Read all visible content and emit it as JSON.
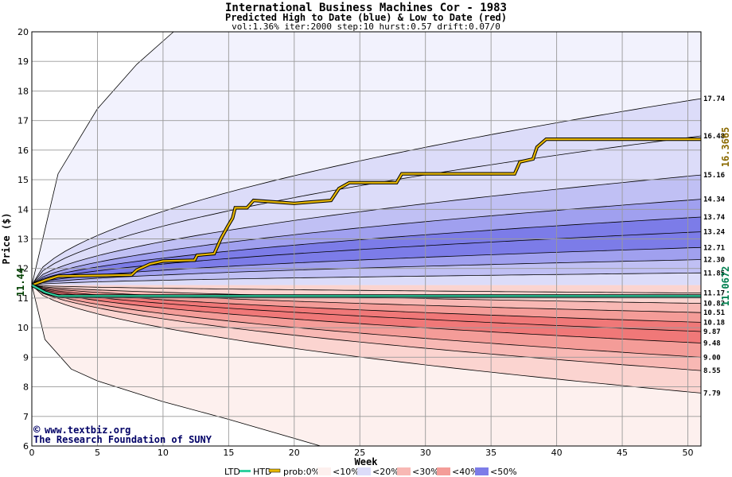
{
  "header": {
    "title": "International Business Machines Cor - 1983",
    "subtitle": "Predicted High to Date (blue) &  Low to Date (red)",
    "params": "vol:1.36% iter:2000 step:10 hurst:0.57 drift:0.07/0"
  },
  "watermark": {
    "line1": "www.textbiz.org",
    "copyright_symbol": "©",
    "line2": "The Research Foundation of SUNY"
  },
  "legend": {
    "ltd": "LTD",
    "htd": "HTD",
    "prob": "prob:0%",
    "items": [
      "<10%",
      "<20%",
      "<30%",
      "<40%",
      "<50%"
    ]
  },
  "colors": {
    "ltd": "#30d0a0",
    "htd": "#e8b800",
    "blue_bands": [
      "#f2f2fd",
      "#dcdcf9",
      "#c0c0f4",
      "#a0a0ef",
      "#7c7ce8"
    ],
    "red_bands": [
      "#fdf0ee",
      "#fbd4d0",
      "#f8b8b4",
      "#f49c98",
      "#f07878"
    ],
    "left_marker": "#004000",
    "right_high_marker": "#8b6a00",
    "right_low_marker": "#008050"
  },
  "chart_data": {
    "type": "area",
    "xlabel": "Week",
    "ylabel": "Price ($)",
    "xlim": [
      0,
      51
    ],
    "ylim": [
      6,
      20
    ],
    "x_ticks": [
      0,
      5,
      10,
      15,
      20,
      25,
      30,
      35,
      40,
      45,
      50
    ],
    "y_ticks": [
      6,
      7,
      8,
      9,
      10,
      11,
      12,
      13,
      14,
      15,
      16,
      17,
      18,
      19,
      20
    ],
    "start_price": 11.44,
    "start_price_label": "11.44",
    "high_end_label": "16.3665",
    "low_end_label": "11.0672",
    "high_quantile_levels_at_week_51": [
      17.74,
      16.48,
      15.16,
      14.34,
      13.74,
      13.24,
      12.71,
      12.3,
      11.85,
      11.17
    ],
    "high_quantile_labels": [
      "17.74",
      "16.48",
      "15.16",
      "14.34",
      "13.74",
      "13.24",
      "12.71",
      "12.30",
      "11.85",
      "11.17"
    ],
    "low_quantile_levels_at_week_51": [
      10.82,
      10.51,
      10.18,
      9.87,
      9.48,
      9.0,
      8.55,
      7.79
    ],
    "low_quantile_labels": [
      "10.82",
      "10.51",
      "10.18",
      "9.87",
      "9.48",
      "9.00",
      "8.55",
      "7.79"
    ],
    "outer_high_envelope": [
      [
        0,
        11.44
      ],
      [
        2,
        15.2
      ],
      [
        5,
        17.4
      ],
      [
        8,
        18.9
      ],
      [
        10.8,
        20
      ]
    ],
    "outer_low_envelope": [
      [
        0,
        11.44
      ],
      [
        1,
        9.6
      ],
      [
        3,
        8.6
      ],
      [
        5,
        8.2
      ],
      [
        10,
        7.5
      ],
      [
        15,
        6.9
      ],
      [
        22,
        6.0
      ]
    ],
    "series": [
      {
        "name": "HTD",
        "points": [
          [
            0,
            11.44
          ],
          [
            1,
            11.6
          ],
          [
            2,
            11.74
          ],
          [
            5,
            11.76
          ],
          [
            7.6,
            11.78
          ],
          [
            8,
            11.95
          ],
          [
            9,
            12.15
          ],
          [
            10,
            12.25
          ],
          [
            12.4,
            12.28
          ],
          [
            12.6,
            12.45
          ],
          [
            13.9,
            12.5
          ],
          [
            14.4,
            13.0
          ],
          [
            14.9,
            13.4
          ],
          [
            15.3,
            13.7
          ],
          [
            15.5,
            14.05
          ],
          [
            16.4,
            14.05
          ],
          [
            16.9,
            14.3
          ],
          [
            20,
            14.2
          ],
          [
            22.8,
            14.3
          ],
          [
            23.4,
            14.7
          ],
          [
            24.2,
            14.9
          ],
          [
            27.8,
            14.9
          ],
          [
            28.2,
            15.2
          ],
          [
            36.8,
            15.2
          ],
          [
            37.2,
            15.6
          ],
          [
            38.2,
            15.7
          ],
          [
            38.5,
            16.1
          ],
          [
            39.2,
            16.37
          ],
          [
            51,
            16.37
          ]
        ]
      },
      {
        "name": "LTD",
        "points": [
          [
            0,
            11.44
          ],
          [
            1,
            11.2
          ],
          [
            2,
            11.07
          ],
          [
            51,
            11.07
          ]
        ]
      }
    ]
  }
}
